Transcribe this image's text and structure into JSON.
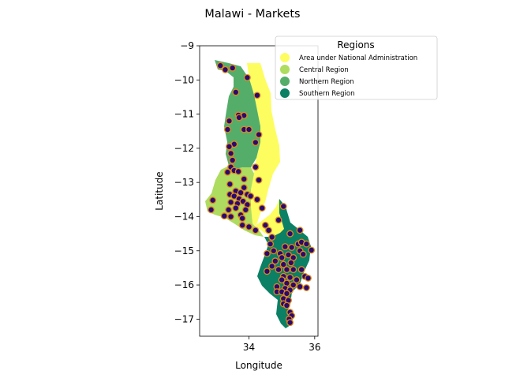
{
  "chart_data": {
    "type": "scatter",
    "title": "Malawi - Markets",
    "xlabel": "Longitude",
    "ylabel": "Latitude",
    "xlim": [
      32.5,
      36.1
    ],
    "ylim": [
      -17.5,
      -9.0
    ],
    "xticks": [
      34,
      36
    ],
    "yticks": [
      -9,
      -10,
      -11,
      -12,
      -13,
      -14,
      -15,
      -16,
      -17
    ],
    "xtick_labels": [
      "34",
      "36"
    ],
    "ytick_labels": [
      "−9",
      "−10",
      "−11",
      "−12",
      "−13",
      "−14",
      "−15",
      "−16",
      "−17"
    ],
    "grid": false,
    "legend": {
      "title": "Regions",
      "placement": "top-right",
      "entries": [
        {
          "label": "Area under National Administration",
          "color": "#fdfd60"
        },
        {
          "label": "Central Region",
          "color": "#aedc60"
        },
        {
          "label": "Northern Region",
          "color": "#55ad6a"
        },
        {
          "label": "Southern Region",
          "color": "#0b8064"
        }
      ]
    },
    "marker_fill": "#2a0a6e",
    "marker_edge": "#e08a1e",
    "markets": [
      [
        33.13,
        -9.58
      ],
      [
        33.28,
        -9.7
      ],
      [
        33.5,
        -9.65
      ],
      [
        33.95,
        -9.93
      ],
      [
        33.6,
        -10.36
      ],
      [
        34.25,
        -10.45
      ],
      [
        33.68,
        -11.03
      ],
      [
        33.85,
        -11.04
      ],
      [
        33.4,
        -11.2
      ],
      [
        33.7,
        -11.1
      ],
      [
        33.35,
        -11.45
      ],
      [
        33.85,
        -11.45
      ],
      [
        34.0,
        -11.45
      ],
      [
        34.3,
        -11.6
      ],
      [
        33.55,
        -11.88
      ],
      [
        33.4,
        -11.95
      ],
      [
        34.2,
        -11.83
      ],
      [
        33.45,
        -12.15
      ],
      [
        33.5,
        -12.35
      ],
      [
        33.45,
        -12.55
      ],
      [
        33.35,
        -12.7
      ],
      [
        33.55,
        -12.65
      ],
      [
        33.68,
        -12.68
      ],
      [
        34.2,
        -12.55
      ],
      [
        33.85,
        -12.9
      ],
      [
        34.3,
        -12.93
      ],
      [
        33.42,
        -13.05
      ],
      [
        33.85,
        -13.15
      ],
      [
        33.6,
        -13.25
      ],
      [
        33.75,
        -13.3
      ],
      [
        33.42,
        -13.35
      ],
      [
        33.95,
        -13.35
      ],
      [
        34.05,
        -13.4
      ],
      [
        33.55,
        -13.4
      ],
      [
        33.7,
        -13.48
      ],
      [
        34.25,
        -13.5
      ],
      [
        32.9,
        -13.52
      ],
      [
        33.45,
        -13.58
      ],
      [
        33.82,
        -13.55
      ],
      [
        33.65,
        -13.62
      ],
      [
        33.95,
        -13.65
      ],
      [
        33.9,
        -13.8
      ],
      [
        33.6,
        -13.75
      ],
      [
        33.38,
        -13.8
      ],
      [
        32.85,
        -13.8
      ],
      [
        33.75,
        -13.95
      ],
      [
        33.45,
        -14.0
      ],
      [
        33.25,
        -13.98
      ],
      [
        33.8,
        -14.05
      ],
      [
        34.0,
        -14.3
      ],
      [
        33.8,
        -14.25
      ],
      [
        34.4,
        -13.75
      ],
      [
        35.05,
        -13.7
      ],
      [
        34.9,
        -14.1
      ],
      [
        34.2,
        -14.4
      ],
      [
        34.5,
        -14.25
      ],
      [
        34.6,
        -14.4
      ],
      [
        34.7,
        -14.6
      ],
      [
        35.25,
        -14.5
      ],
      [
        35.55,
        -14.4
      ],
      [
        34.65,
        -14.8
      ],
      [
        34.75,
        -15.0
      ],
      [
        34.55,
        -15.08
      ],
      [
        35.1,
        -14.88
      ],
      [
        35.3,
        -14.9
      ],
      [
        35.5,
        -14.8
      ],
      [
        35.6,
        -14.75
      ],
      [
        35.75,
        -14.8
      ],
      [
        35.9,
        -14.98
      ],
      [
        34.95,
        -15.08
      ],
      [
        35.0,
        -15.2
      ],
      [
        35.2,
        -15.12
      ],
      [
        35.35,
        -15.2
      ],
      [
        35.55,
        -15.0
      ],
      [
        35.65,
        -15.1
      ],
      [
        34.8,
        -15.3
      ],
      [
        35.05,
        -15.4
      ],
      [
        35.28,
        -15.35
      ],
      [
        34.7,
        -15.45
      ],
      [
        34.9,
        -15.55
      ],
      [
        35.15,
        -15.55
      ],
      [
        35.35,
        -15.55
      ],
      [
        35.6,
        -15.55
      ],
      [
        34.55,
        -15.6
      ],
      [
        35.05,
        -15.75
      ],
      [
        35.25,
        -15.78
      ],
      [
        35.45,
        -15.85
      ],
      [
        35.7,
        -15.75
      ],
      [
        35.8,
        -15.8
      ],
      [
        35.0,
        -15.85
      ],
      [
        35.15,
        -15.95
      ],
      [
        35.35,
        -16.0
      ],
      [
        35.55,
        -16.05
      ],
      [
        35.75,
        -16.08
      ],
      [
        34.85,
        -16.05
      ],
      [
        35.1,
        -16.1
      ],
      [
        35.25,
        -16.15
      ],
      [
        34.85,
        -16.2
      ],
      [
        35.0,
        -16.2
      ],
      [
        35.15,
        -16.25
      ],
      [
        35.05,
        -16.4
      ],
      [
        35.2,
        -16.45
      ],
      [
        35.05,
        -16.55
      ],
      [
        35.15,
        -16.6
      ],
      [
        35.25,
        -16.8
      ],
      [
        35.3,
        -16.9
      ],
      [
        35.22,
        -17.0
      ],
      [
        35.25,
        -17.1
      ]
    ]
  }
}
